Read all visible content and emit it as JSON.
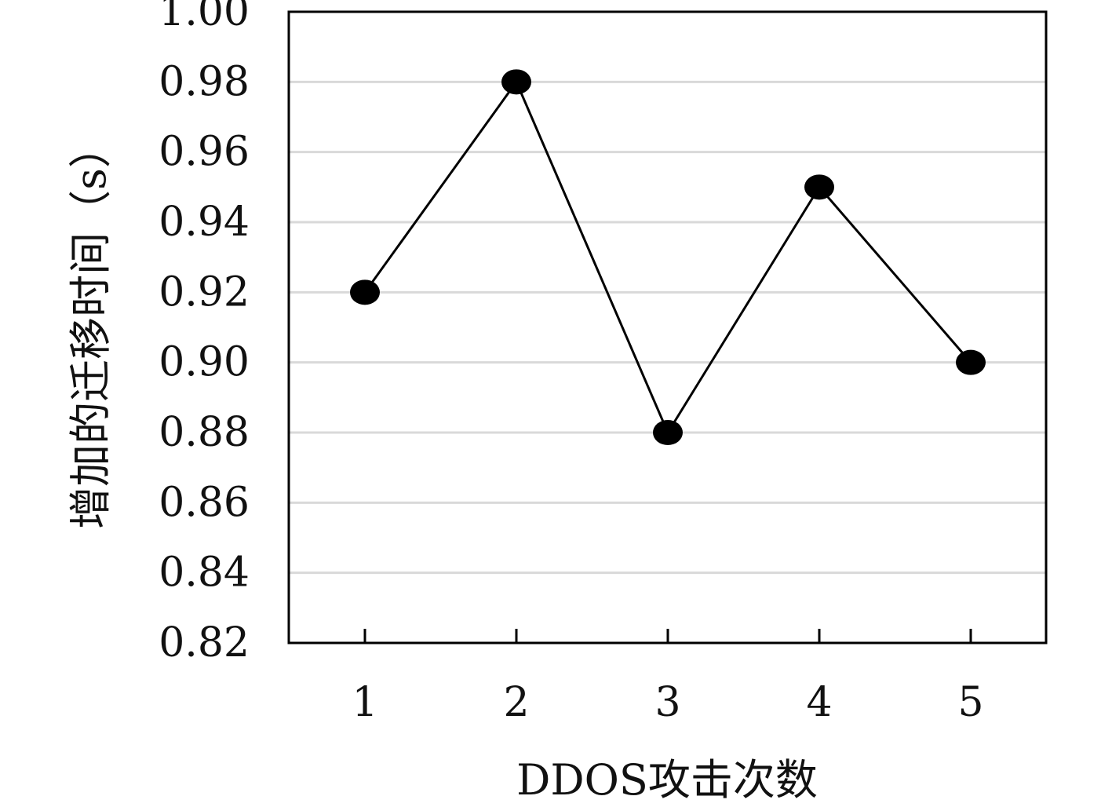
{
  "chart_data": {
    "type": "line",
    "title": "",
    "xlabel": "DDOS攻击次数",
    "ylabel": "增加的迁移时间（s）",
    "categories": [
      "1",
      "2",
      "3",
      "4",
      "5"
    ],
    "series": [
      {
        "values": [
          0.92,
          0.98,
          0.88,
          0.95,
          0.9
        ]
      }
    ],
    "ylim": [
      0.82,
      1.0
    ],
    "yticks": [
      "0.82",
      "0.84",
      "0.86",
      "0.88",
      "0.90",
      "0.92",
      "0.94",
      "0.96",
      "0.98",
      "1.00"
    ],
    "grid": true,
    "legend": "none",
    "colors": {
      "line": "#000000",
      "marker": "#000000",
      "grid": "#d9d9d9",
      "frame": "#000000"
    }
  }
}
